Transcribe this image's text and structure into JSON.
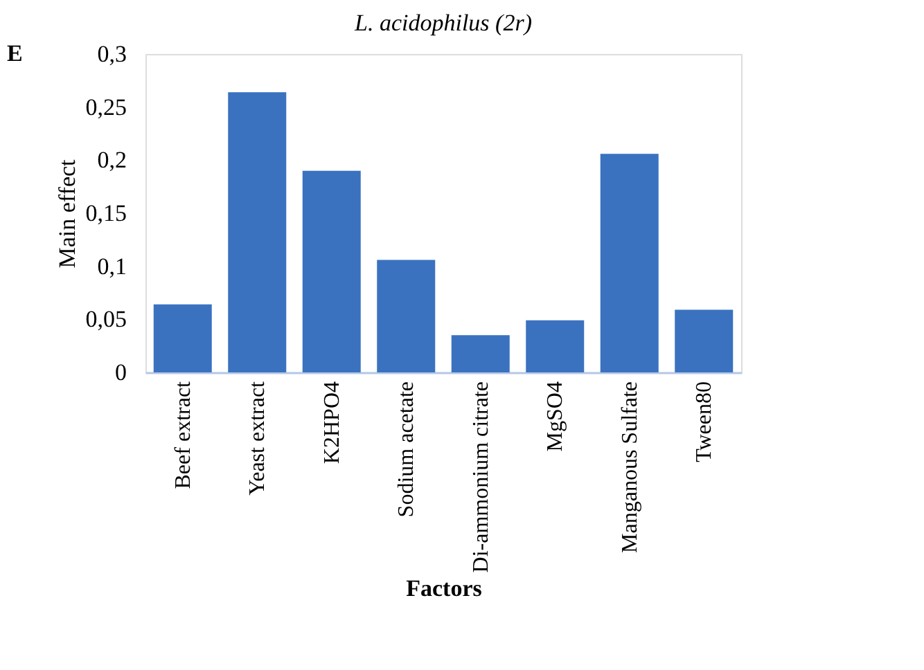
{
  "chart_data": {
    "type": "bar",
    "title": "L. acidophilus (2r)",
    "xlabel": "Factors",
    "ylabel": "Main effect",
    "annotations": [
      "E"
    ],
    "categories": [
      "Beef extract",
      "Yeast extract",
      "K2HPO4",
      "Sodium acetate",
      "Di-ammonium citrate",
      "MgSO4",
      "Manganous Sulfate",
      "Tween80"
    ],
    "values": [
      0.064,
      0.264,
      0.19,
      0.106,
      0.035,
      0.049,
      0.206,
      0.059
    ],
    "color": "#3a72c0",
    "ylim": [
      0,
      0.3
    ],
    "yticks": [
      0,
      {
        "value": 0.05,
        "label": "0,05"
      },
      {
        "value": 0.1,
        "label": "0,1"
      },
      {
        "value": 0.15,
        "label": "0,15"
      },
      {
        "value": 0.2,
        "label": "0,2"
      },
      {
        "value": 0.25,
        "label": "0,25"
      },
      {
        "value": 0.3,
        "label": "0,3"
      }
    ],
    "grid": false
  }
}
